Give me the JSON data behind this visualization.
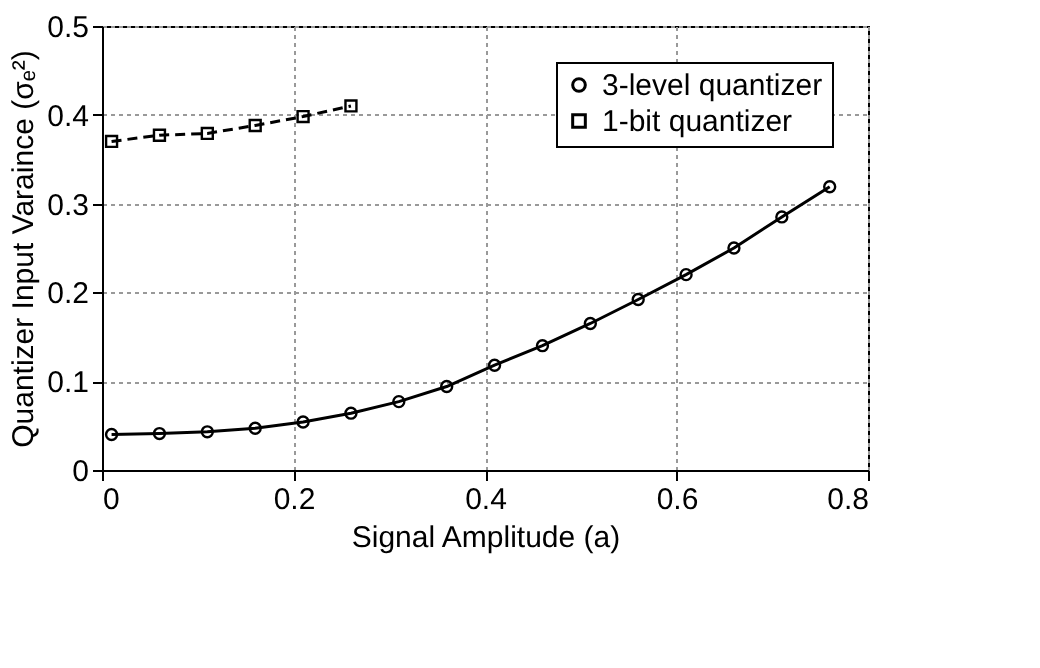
{
  "chart_data": {
    "type": "line",
    "xlabel": "Signal Amplitude (a)",
    "ylabel": "Quantizer Input  Varaince (σₑ²)",
    "xlim": [
      0,
      0.8
    ],
    "xticks": [
      0,
      0.2,
      0.4,
      0.6,
      0.8
    ],
    "ylim": [
      0,
      0.5
    ],
    "yticks": [
      0,
      0.1,
      0.2,
      0.3,
      0.4,
      0.5
    ],
    "grid": true,
    "legend": "top right",
    "series": [
      {
        "name": "3-level quantizer",
        "color": "#000000",
        "marker": "circle",
        "line_style": "solid",
        "x": [
          0.01,
          0.06,
          0.11,
          0.16,
          0.21,
          0.26,
          0.31,
          0.36,
          0.41,
          0.46,
          0.51,
          0.56,
          0.61,
          0.66,
          0.71,
          0.76
        ],
        "values": [
          0.04,
          0.041,
          0.043,
          0.047,
          0.054,
          0.064,
          0.077,
          0.094,
          0.118,
          0.14,
          0.165,
          0.192,
          0.22,
          0.25,
          0.285,
          0.319
        ]
      },
      {
        "name": "1-bit quantizer",
        "color": "#000000",
        "marker": "square",
        "line_style": "dashed",
        "x": [
          0.01,
          0.06,
          0.11,
          0.16,
          0.21,
          0.26
        ],
        "values": [
          0.37,
          0.377,
          0.379,
          0.388,
          0.398,
          0.41
        ]
      }
    ]
  }
}
